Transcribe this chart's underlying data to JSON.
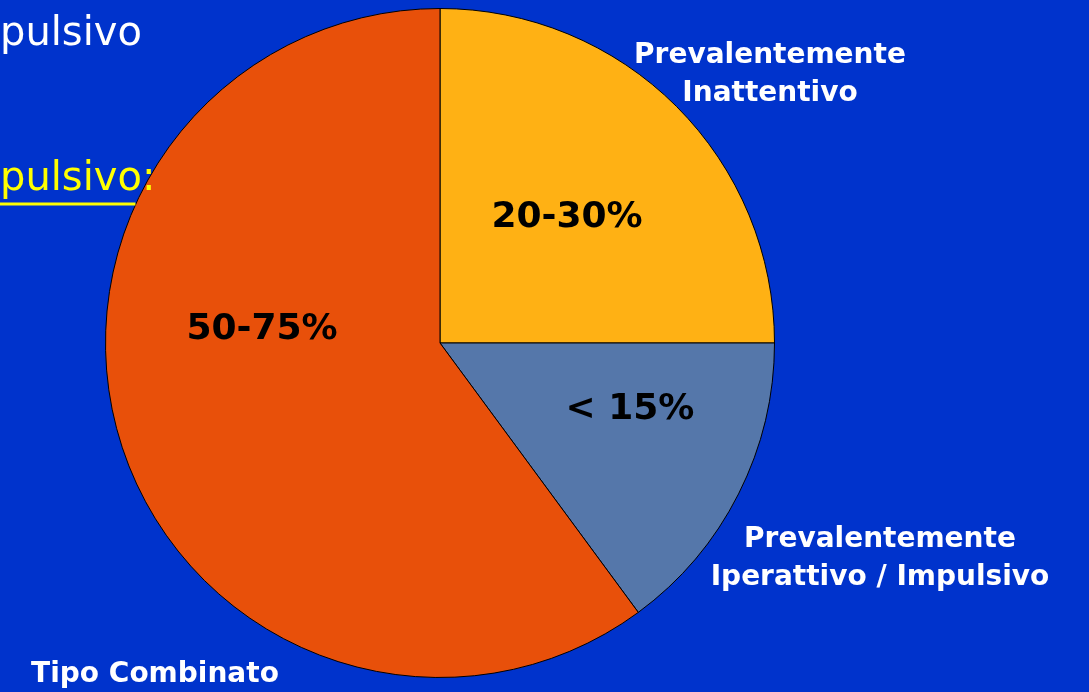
{
  "chart_data": {
    "type": "pie",
    "categories": [
      "Prevalentemente\nInattentivo",
      "Prevalentemente\nIperattivo / Impulsivo",
      "Tipo Combinato"
    ],
    "values": [
      25,
      14.9,
      60.1
    ],
    "colors": [
      "#ffb114",
      "#5577aa",
      "#e8500a"
    ],
    "annotations": [
      "pulsivo",
      "pulsivo:",
      "20-30%",
      "< 15%",
      "50-75%"
    ],
    "legend": false
  }
}
